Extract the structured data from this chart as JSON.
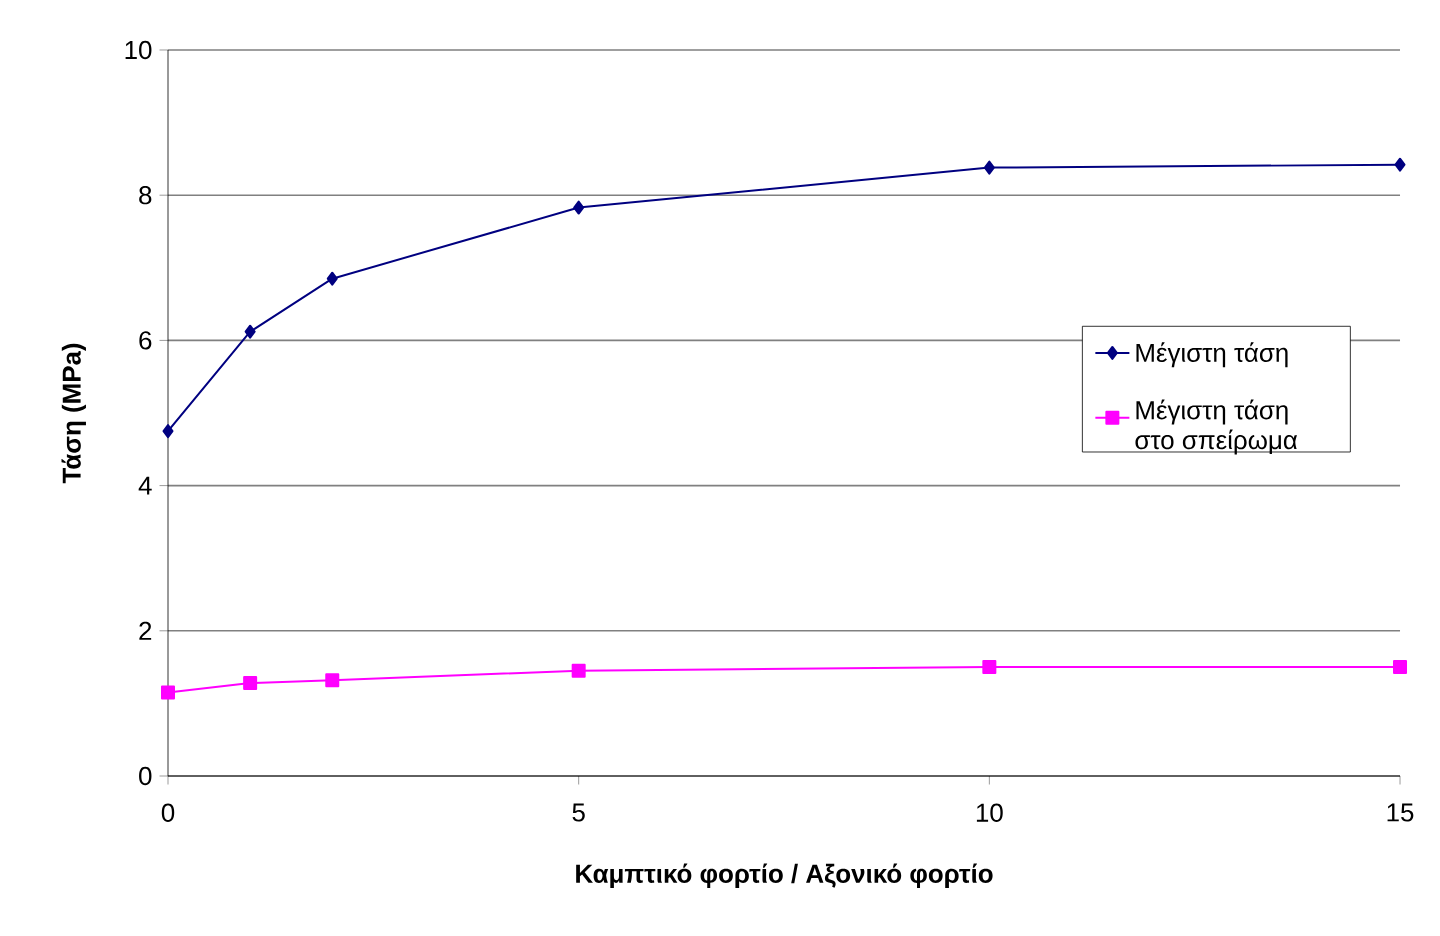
{
  "chart_data": {
    "type": "line",
    "xlabel": "Καμπτικό φορτίο / Αξονικό φορτίο",
    "ylabel": "Τάση (MPa)",
    "x": [
      0,
      1,
      2,
      5,
      10,
      15
    ],
    "series": [
      {
        "name": "Μέγιστη τάση",
        "color": "#000080",
        "marker": "diamond",
        "values": [
          4.75,
          6.12,
          6.85,
          7.83,
          8.38,
          8.42
        ]
      },
      {
        "name": "Μέγιστη τάση στο σπείρωμα",
        "color": "#ff00ff",
        "marker": "square",
        "values": [
          1.15,
          1.28,
          1.32,
          1.45,
          1.5,
          1.5
        ]
      }
    ],
    "xlim": [
      0,
      15
    ],
    "ylim": [
      0,
      10
    ],
    "xticks": [
      0,
      5,
      10,
      15
    ],
    "yticks": [
      0,
      2,
      4,
      6,
      8,
      10
    ],
    "grid": "y",
    "legend": "right",
    "line_style": "solid"
  }
}
